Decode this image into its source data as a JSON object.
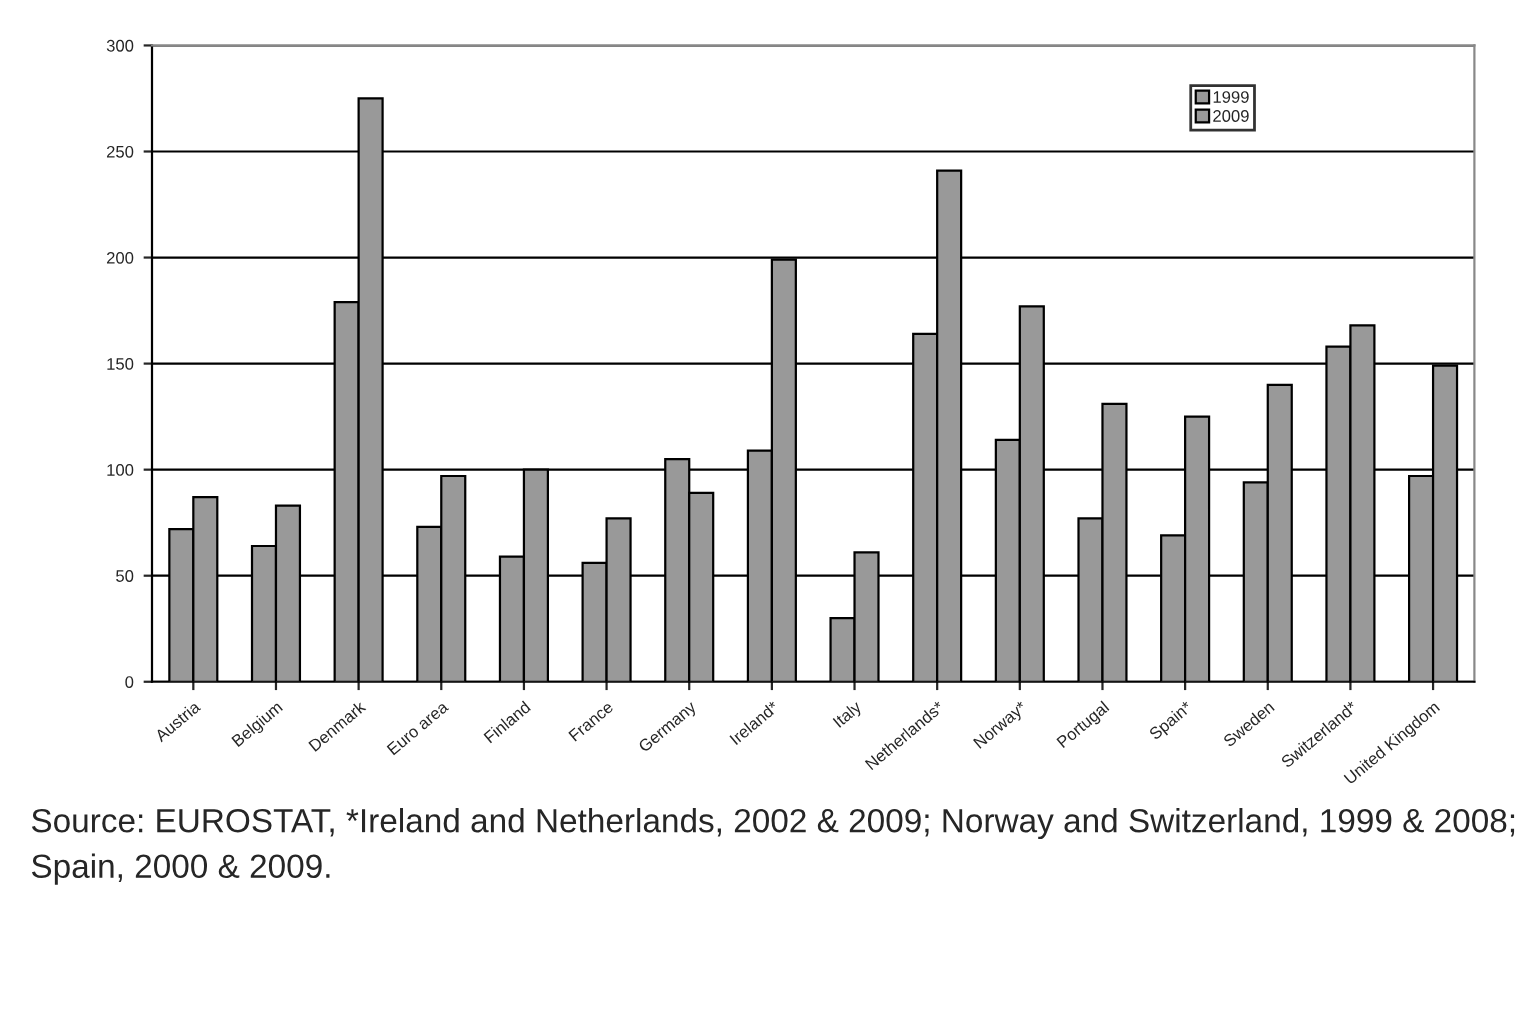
{
  "chart_data": {
    "type": "bar",
    "categories": [
      "Austria",
      "Belgium",
      "Denmark",
      "Euro area",
      "Finland",
      "France",
      "Germany",
      "Ireland*",
      "Italy",
      "Netherlands*",
      "Norway*",
      "Portugal",
      "Spain*",
      "Sweden",
      "Switzerland*",
      "United Kingdom"
    ],
    "series": [
      {
        "name": "1999",
        "color": "#999999",
        "values": [
          72,
          64,
          179,
          73,
          59,
          56,
          105,
          109,
          30,
          164,
          114,
          77,
          69,
          94,
          158,
          97
        ]
      },
      {
        "name": "2009",
        "color": "#999999",
        "values": [
          87,
          83,
          275,
          97,
          100,
          77,
          89,
          199,
          61,
          241,
          177,
          131,
          125,
          140,
          168,
          149
        ]
      }
    ],
    "ylim": [
      0,
      300
    ],
    "yticks": [
      0,
      50,
      100,
      150,
      200,
      250,
      300
    ],
    "grid": "y",
    "legend": "top right",
    "annotations": [
      "Source: EUROSTAT, *Ireland and Netherlands, 2002 & 2009; Norway and Switzerland, 1999 & 2008; Spain, 2000 & 2009."
    ]
  }
}
